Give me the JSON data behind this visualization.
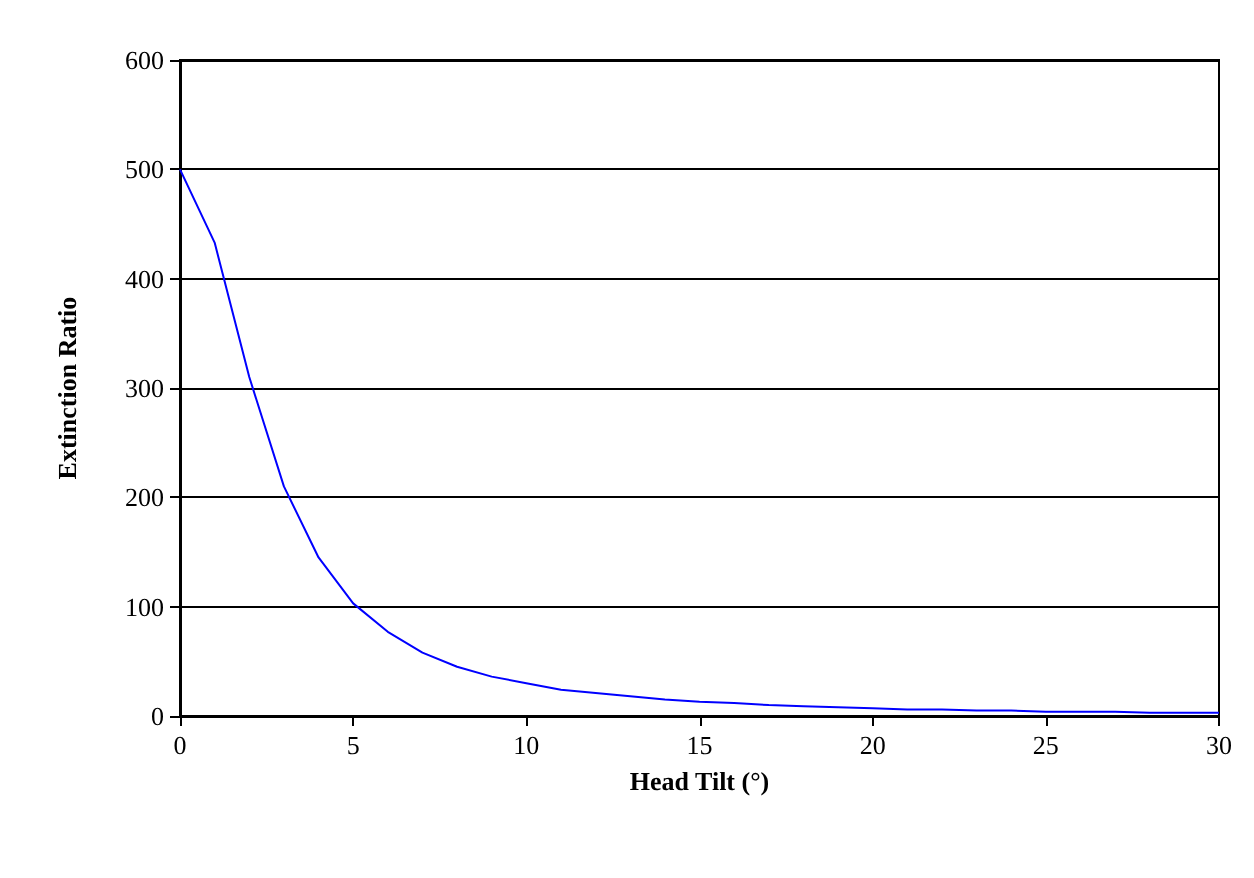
{
  "chart_data": {
    "type": "line",
    "xlabel": "Head Tilt (°)",
    "ylabel": "Extinction Ratio",
    "x": [
      0,
      1,
      2,
      3,
      4,
      5,
      6,
      7,
      8,
      9,
      10,
      11,
      12,
      13,
      14,
      15,
      16,
      17,
      18,
      19,
      20,
      21,
      22,
      23,
      24,
      25,
      26,
      27,
      28,
      29,
      30
    ],
    "series": [
      {
        "color": "#0000ff",
        "values": [
          500,
          433,
          310,
          210,
          145,
          103,
          77,
          58,
          45,
          36,
          30,
          24,
          21,
          18,
          15,
          13,
          12,
          10,
          9,
          8,
          7,
          6,
          6,
          5,
          5,
          4,
          4,
          4,
          3,
          3,
          3
        ]
      }
    ],
    "xlim": [
      0,
      30
    ],
    "xticks": [
      0,
      5,
      10,
      15,
      20,
      25,
      30
    ],
    "ylim": [
      0,
      600
    ],
    "yticks": [
      0,
      100,
      200,
      300,
      400,
      500,
      600
    ],
    "grid": "y",
    "marker": "none",
    "line_style": "solid"
  }
}
